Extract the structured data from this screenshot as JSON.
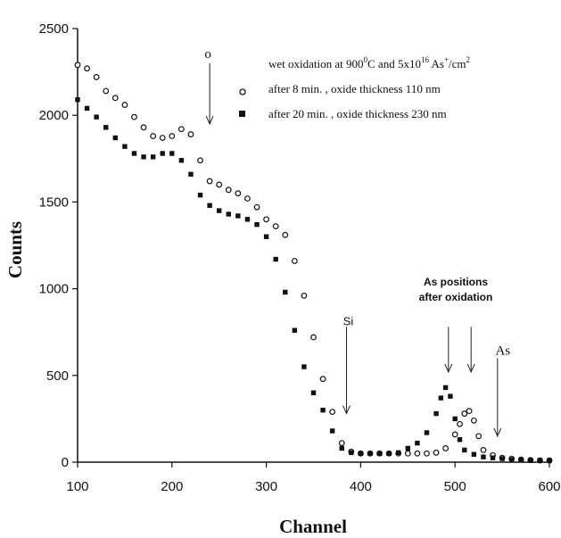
{
  "chart_data": {
    "type": "scatter",
    "title": "",
    "xlabel": "Channel",
    "ylabel": "Counts",
    "xlim": [
      100,
      600
    ],
    "ylim": [
      0,
      2500
    ],
    "xticks": [
      "100",
      "200",
      "300",
      "400",
      "500",
      "600"
    ],
    "yticks": [
      "0",
      "500",
      "1000",
      "1500",
      "2000",
      "2500"
    ],
    "grid": false,
    "legend_position": "top-right",
    "legend_title": "wet oxidation at 900°C and 5x10^16 As+/cm2",
    "legend_title_parts": {
      "a": "wet oxidation at  900",
      "sup1": "0",
      "b": "C and  5x10",
      "sup2": "16",
      "c": " As",
      "sup3": "+",
      "d": "/cm",
      "sup4": "2"
    },
    "series": [
      {
        "name": "after 8 min. , oxide thickness  110 nm",
        "marker": "open-circle",
        "points": [
          [
            100,
            2290
          ],
          [
            110,
            2270
          ],
          [
            120,
            2220
          ],
          [
            130,
            2140
          ],
          [
            140,
            2100
          ],
          [
            150,
            2060
          ],
          [
            160,
            1990
          ],
          [
            170,
            1930
          ],
          [
            180,
            1880
          ],
          [
            190,
            1870
          ],
          [
            200,
            1880
          ],
          [
            210,
            1920
          ],
          [
            220,
            1890
          ],
          [
            230,
            1740
          ],
          [
            240,
            1620
          ],
          [
            250,
            1600
          ],
          [
            260,
            1570
          ],
          [
            270,
            1550
          ],
          [
            280,
            1520
          ],
          [
            290,
            1470
          ],
          [
            300,
            1400
          ],
          [
            310,
            1360
          ],
          [
            320,
            1310
          ],
          [
            330,
            1160
          ],
          [
            340,
            960
          ],
          [
            350,
            720
          ],
          [
            360,
            480
          ],
          [
            370,
            290
          ],
          [
            380,
            110
          ],
          [
            390,
            60
          ],
          [
            400,
            50
          ],
          [
            410,
            50
          ],
          [
            420,
            50
          ],
          [
            430,
            50
          ],
          [
            440,
            50
          ],
          [
            450,
            50
          ],
          [
            460,
            50
          ],
          [
            470,
            50
          ],
          [
            480,
            55
          ],
          [
            490,
            80
          ],
          [
            500,
            160
          ],
          [
            505,
            220
          ],
          [
            510,
            280
          ],
          [
            515,
            295
          ],
          [
            520,
            240
          ],
          [
            525,
            150
          ],
          [
            530,
            70
          ],
          [
            540,
            40
          ],
          [
            550,
            25
          ],
          [
            560,
            20
          ],
          [
            570,
            15
          ],
          [
            580,
            12
          ],
          [
            590,
            10
          ],
          [
            600,
            10
          ]
        ]
      },
      {
        "name": "after 20 min. , oxide thickness  230 nm",
        "marker": "filled-square",
        "points": [
          [
            100,
            2090
          ],
          [
            110,
            2040
          ],
          [
            120,
            1990
          ],
          [
            130,
            1930
          ],
          [
            140,
            1870
          ],
          [
            150,
            1820
          ],
          [
            160,
            1780
          ],
          [
            170,
            1760
          ],
          [
            180,
            1760
          ],
          [
            190,
            1780
          ],
          [
            200,
            1780
          ],
          [
            210,
            1740
          ],
          [
            220,
            1660
          ],
          [
            230,
            1540
          ],
          [
            240,
            1480
          ],
          [
            250,
            1450
          ],
          [
            260,
            1430
          ],
          [
            270,
            1420
          ],
          [
            280,
            1400
          ],
          [
            290,
            1370
          ],
          [
            300,
            1300
          ],
          [
            310,
            1170
          ],
          [
            320,
            980
          ],
          [
            330,
            760
          ],
          [
            340,
            550
          ],
          [
            350,
            400
          ],
          [
            360,
            300
          ],
          [
            370,
            180
          ],
          [
            380,
            80
          ],
          [
            390,
            55
          ],
          [
            400,
            50
          ],
          [
            410,
            50
          ],
          [
            420,
            50
          ],
          [
            430,
            50
          ],
          [
            440,
            55
          ],
          [
            450,
            80
          ],
          [
            460,
            110
          ],
          [
            470,
            170
          ],
          [
            480,
            280
          ],
          [
            485,
            370
          ],
          [
            490,
            430
          ],
          [
            495,
            380
          ],
          [
            500,
            250
          ],
          [
            505,
            130
          ],
          [
            510,
            70
          ],
          [
            520,
            45
          ],
          [
            530,
            30
          ],
          [
            540,
            25
          ],
          [
            550,
            20
          ],
          [
            560,
            15
          ],
          [
            570,
            12
          ],
          [
            580,
            10
          ],
          [
            590,
            10
          ],
          [
            600,
            8
          ]
        ]
      }
    ],
    "annotations": [
      {
        "id": "circle-arrow",
        "label": "o",
        "x": 240,
        "y_from": 2300,
        "y_to": 1950
      },
      {
        "id": "si-edge",
        "label": "Si",
        "x": 385,
        "y_from": 780,
        "y_to": 280
      },
      {
        "id": "as-pos-1",
        "label": "",
        "x": 493,
        "y_from": 780,
        "y_to": 520
      },
      {
        "id": "as-pos-2",
        "label": "",
        "x": 517,
        "y_from": 780,
        "y_to": 520
      },
      {
        "id": "as-edge",
        "label": "As",
        "x": 545,
        "y_from": 600,
        "y_to": 150
      }
    ],
    "as_positions_label": [
      "As positions",
      "after oxidation"
    ]
  }
}
